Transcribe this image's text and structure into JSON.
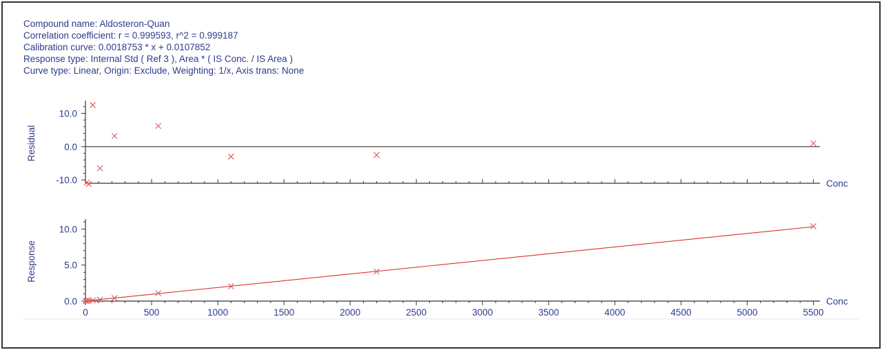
{
  "header": {
    "compound_name": "Compound name: Aldosteron-Quan",
    "correlation": "Correlation coefficient: r = 0.999593, r^2 = 0.999187",
    "calibration": "Calibration curve: 0.0018753 * x + 0.0107852",
    "response_type": "Response type: Internal Std ( Ref 3 ), Area * ( IS Conc. / IS Area )",
    "curve_type": "Curve type: Linear, Origin: Exclude, Weighting: 1/x, Axis trans: None"
  },
  "colors": {
    "text": "#2e3a8c",
    "axis": "#333333",
    "series": "#e06060",
    "line": "#d83030"
  },
  "chart_data": [
    {
      "type": "scatter",
      "ylabel": "Residual",
      "xlabel": "Conc",
      "xlim": [
        0,
        5550
      ],
      "ylim": [
        -11,
        13
      ],
      "yticks": [
        -10.0,
        0.0,
        10.0
      ],
      "ytick_labels": [
        "-10.0",
        "0.0",
        "10.0"
      ],
      "reference_line_y": 0,
      "points": [
        {
          "x": 10,
          "y": -10.8
        },
        {
          "x": 25,
          "y": -11.2
        },
        {
          "x": 55,
          "y": 12.5
        },
        {
          "x": 110,
          "y": -6.5
        },
        {
          "x": 220,
          "y": 3.2
        },
        {
          "x": 550,
          "y": 6.2
        },
        {
          "x": 1100,
          "y": -3.0
        },
        {
          "x": 2200,
          "y": -2.5
        },
        {
          "x": 5500,
          "y": 1.0
        }
      ]
    },
    {
      "type": "scatter",
      "ylabel": "Response",
      "xlabel": "Conc",
      "xlim": [
        0,
        5550
      ],
      "ylim": [
        0,
        11
      ],
      "yticks": [
        0.0,
        5.0,
        10.0
      ],
      "ytick_labels": [
        "0.0",
        "5.0",
        "10.0"
      ],
      "xticks": [
        0,
        500,
        1000,
        1500,
        2000,
        2500,
        3000,
        3500,
        4000,
        4500,
        5000,
        5500
      ],
      "xtick_labels": [
        "0",
        "500",
        "1000",
        "1500",
        "2000",
        "2500",
        "3000",
        "3500",
        "4000",
        "4500",
        "5000",
        "5500"
      ],
      "fit_line": {
        "slope": 0.0018753,
        "intercept": 0.0107852,
        "x_range": [
          0,
          5500
        ]
      },
      "points": [
        {
          "x": 2,
          "y": 0.02
        },
        {
          "x": 10,
          "y": 0.03
        },
        {
          "x": 25,
          "y": 0.05
        },
        {
          "x": 55,
          "y": 0.12
        },
        {
          "x": 110,
          "y": 0.2
        },
        {
          "x": 220,
          "y": 0.42
        },
        {
          "x": 550,
          "y": 1.1
        },
        {
          "x": 1100,
          "y": 2.05
        },
        {
          "x": 2200,
          "y": 4.1
        },
        {
          "x": 5500,
          "y": 10.4
        }
      ]
    }
  ]
}
